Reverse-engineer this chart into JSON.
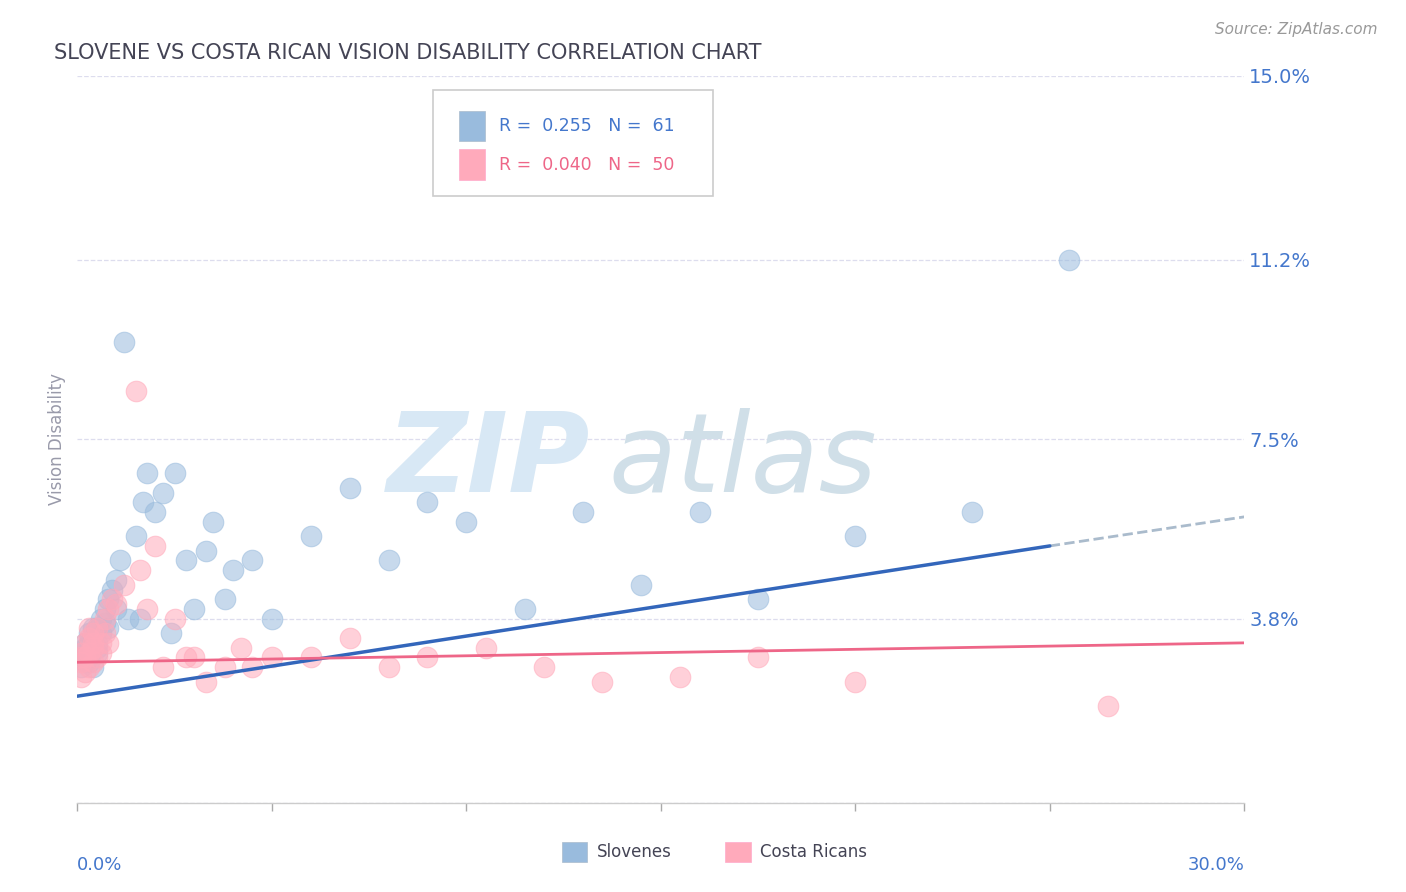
{
  "title": "SLOVENE VS COSTA RICAN VISION DISABILITY CORRELATION CHART",
  "source": "Source: ZipAtlas.com",
  "ylabel": "Vision Disability",
  "xlim": [
    0.0,
    0.3
  ],
  "ylim": [
    0.0,
    0.15
  ],
  "yticks": [
    0.0,
    0.038,
    0.075,
    0.112,
    0.15
  ],
  "ytick_labels": [
    "",
    "3.8%",
    "7.5%",
    "11.2%",
    "15.0%"
  ],
  "legend_r1": "R =  0.255",
  "legend_n1": "N =  61",
  "legend_r2": "R =  0.040",
  "legend_n2": "N =  50",
  "slovene_color": "#99BBDD",
  "costa_rican_color": "#FFAABB",
  "slovene_line_color": "#3366BB",
  "costa_rican_line_color": "#EE6688",
  "dashed_line_color": "#AABBCC",
  "background_color": "#FFFFFF",
  "grid_color": "#DDDDEE",
  "title_color": "#444455",
  "axis_label_color": "#4477CC",
  "trend_blue_x0": 0.0,
  "trend_blue_y0": 0.022,
  "trend_blue_x1": 0.25,
  "trend_blue_y1": 0.053,
  "trend_blue_dash_x1": 0.3,
  "trend_blue_dash_y1": 0.059,
  "trend_pink_x0": 0.0,
  "trend_pink_y0": 0.029,
  "trend_pink_x1": 0.3,
  "trend_pink_y1": 0.033,
  "slovene_x": [
    0.001,
    0.001,
    0.001,
    0.002,
    0.002,
    0.002,
    0.002,
    0.003,
    0.003,
    0.003,
    0.003,
    0.003,
    0.004,
    0.004,
    0.004,
    0.004,
    0.005,
    0.005,
    0.005,
    0.005,
    0.006,
    0.006,
    0.007,
    0.007,
    0.008,
    0.008,
    0.009,
    0.01,
    0.01,
    0.011,
    0.012,
    0.013,
    0.015,
    0.016,
    0.017,
    0.018,
    0.02,
    0.022,
    0.024,
    0.025,
    0.028,
    0.03,
    0.033,
    0.035,
    0.038,
    0.04,
    0.045,
    0.05,
    0.06,
    0.07,
    0.08,
    0.09,
    0.1,
    0.115,
    0.13,
    0.145,
    0.16,
    0.175,
    0.2,
    0.23,
    0.255
  ],
  "slovene_y": [
    0.028,
    0.031,
    0.03,
    0.029,
    0.032,
    0.033,
    0.03,
    0.031,
    0.033,
    0.035,
    0.029,
    0.03,
    0.032,
    0.034,
    0.036,
    0.028,
    0.032,
    0.036,
    0.033,
    0.031,
    0.035,
    0.038,
    0.04,
    0.037,
    0.042,
    0.036,
    0.044,
    0.046,
    0.04,
    0.05,
    0.095,
    0.038,
    0.055,
    0.038,
    0.062,
    0.068,
    0.06,
    0.064,
    0.035,
    0.068,
    0.05,
    0.04,
    0.052,
    0.058,
    0.042,
    0.048,
    0.05,
    0.038,
    0.055,
    0.065,
    0.05,
    0.062,
    0.058,
    0.04,
    0.06,
    0.045,
    0.06,
    0.042,
    0.055,
    0.06,
    0.112
  ],
  "costa_rican_x": [
    0.001,
    0.001,
    0.001,
    0.001,
    0.002,
    0.002,
    0.002,
    0.003,
    0.003,
    0.003,
    0.003,
    0.004,
    0.004,
    0.004,
    0.004,
    0.005,
    0.005,
    0.006,
    0.006,
    0.007,
    0.007,
    0.008,
    0.008,
    0.009,
    0.01,
    0.012,
    0.015,
    0.016,
    0.018,
    0.02,
    0.022,
    0.025,
    0.028,
    0.03,
    0.033,
    0.038,
    0.042,
    0.045,
    0.05,
    0.06,
    0.07,
    0.08,
    0.09,
    0.105,
    0.12,
    0.135,
    0.155,
    0.175,
    0.2,
    0.265
  ],
  "costa_rican_y": [
    0.026,
    0.029,
    0.031,
    0.03,
    0.027,
    0.03,
    0.033,
    0.028,
    0.031,
    0.034,
    0.036,
    0.029,
    0.033,
    0.035,
    0.032,
    0.03,
    0.036,
    0.033,
    0.031,
    0.038,
    0.035,
    0.04,
    0.033,
    0.042,
    0.041,
    0.045,
    0.085,
    0.048,
    0.04,
    0.053,
    0.028,
    0.038,
    0.03,
    0.03,
    0.025,
    0.028,
    0.032,
    0.028,
    0.03,
    0.03,
    0.034,
    0.028,
    0.03,
    0.032,
    0.028,
    0.025,
    0.026,
    0.03,
    0.025,
    0.02
  ]
}
